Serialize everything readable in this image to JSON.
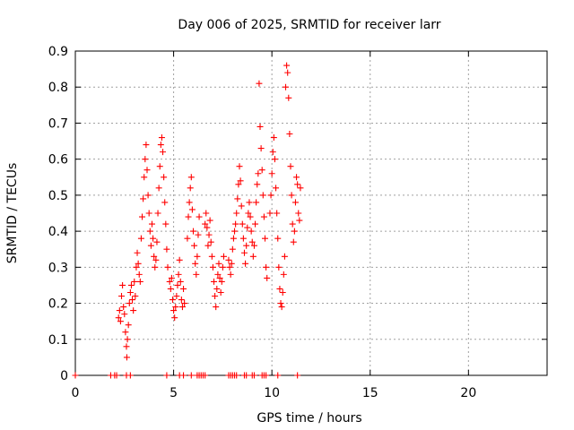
{
  "chart_data": {
    "type": "scatter",
    "title": "Day 006 of 2025, SRMTID for receiver larr",
    "xlabel": "GPS time / hours",
    "ylabel": "SRMTID / TECUs",
    "xlim": [
      0,
      24
    ],
    "ylim": [
      0,
      0.9
    ],
    "xticks": [
      0,
      5,
      10,
      15,
      20
    ],
    "xtick_labels": [
      "0",
      "5",
      "10",
      "15",
      "20"
    ],
    "yticks": [
      0,
      0.1,
      0.2,
      0.3,
      0.4,
      0.5,
      0.6,
      0.7,
      0.8,
      0.9
    ],
    "ytick_labels": [
      "0",
      "0.1",
      "0.2",
      "0.3",
      "0.4",
      "0.5",
      "0.6",
      "0.7",
      "0.8",
      "0.9"
    ],
    "grid": true,
    "marker": "+",
    "point_color": "#ff0000",
    "series": [
      {
        "name": "SRMTID",
        "points": [
          [
            0.0,
            0.0
          ],
          [
            1.8,
            0.0
          ],
          [
            2.0,
            0.0
          ],
          [
            2.1,
            0.0
          ],
          [
            2.6,
            0.0
          ],
          [
            2.8,
            0.0
          ],
          [
            4.65,
            0.0
          ],
          [
            5.3,
            0.0
          ],
          [
            5.5,
            0.0
          ],
          [
            5.9,
            0.0
          ],
          [
            6.2,
            0.0
          ],
          [
            6.3,
            0.0
          ],
          [
            6.4,
            0.0
          ],
          [
            6.5,
            0.0
          ],
          [
            6.6,
            0.0
          ],
          [
            7.8,
            0.0
          ],
          [
            7.9,
            0.0
          ],
          [
            8.0,
            0.0
          ],
          [
            8.1,
            0.0
          ],
          [
            8.2,
            0.0
          ],
          [
            8.6,
            0.0
          ],
          [
            8.7,
            0.0
          ],
          [
            9.0,
            0.0
          ],
          [
            9.1,
            0.0
          ],
          [
            9.5,
            0.0
          ],
          [
            9.6,
            0.0
          ],
          [
            9.7,
            0.0
          ],
          [
            10.3,
            0.0
          ],
          [
            11.3,
            0.0
          ],
          [
            2.2,
            0.16
          ],
          [
            2.25,
            0.18
          ],
          [
            2.3,
            0.15
          ],
          [
            2.35,
            0.22
          ],
          [
            2.4,
            0.25
          ],
          [
            2.45,
            0.19
          ],
          [
            2.5,
            0.17
          ],
          [
            2.55,
            0.12
          ],
          [
            2.6,
            0.08
          ],
          [
            2.62,
            0.05
          ],
          [
            2.65,
            0.1
          ],
          [
            2.7,
            0.14
          ],
          [
            2.75,
            0.2
          ],
          [
            2.8,
            0.23
          ],
          [
            2.85,
            0.25
          ],
          [
            2.9,
            0.21
          ],
          [
            2.95,
            0.18
          ],
          [
            3.0,
            0.26
          ],
          [
            3.05,
            0.22
          ],
          [
            3.1,
            0.3
          ],
          [
            3.15,
            0.34
          ],
          [
            3.2,
            0.31
          ],
          [
            3.25,
            0.28
          ],
          [
            3.3,
            0.26
          ],
          [
            3.35,
            0.38
          ],
          [
            3.4,
            0.44
          ],
          [
            3.45,
            0.49
          ],
          [
            3.5,
            0.55
          ],
          [
            3.55,
            0.6
          ],
          [
            3.6,
            0.64
          ],
          [
            3.65,
            0.57
          ],
          [
            3.7,
            0.5
          ],
          [
            3.75,
            0.45
          ],
          [
            3.8,
            0.4
          ],
          [
            3.85,
            0.36
          ],
          [
            3.9,
            0.42
          ],
          [
            3.95,
            0.38
          ],
          [
            4.0,
            0.33
          ],
          [
            4.05,
            0.3
          ],
          [
            4.1,
            0.32
          ],
          [
            4.15,
            0.37
          ],
          [
            4.2,
            0.45
          ],
          [
            4.25,
            0.52
          ],
          [
            4.3,
            0.58
          ],
          [
            4.35,
            0.64
          ],
          [
            4.4,
            0.66
          ],
          [
            4.45,
            0.62
          ],
          [
            4.5,
            0.55
          ],
          [
            4.55,
            0.48
          ],
          [
            4.6,
            0.42
          ],
          [
            4.65,
            0.35
          ],
          [
            4.7,
            0.3
          ],
          [
            4.8,
            0.26
          ],
          [
            4.85,
            0.24
          ],
          [
            4.9,
            0.27
          ],
          [
            4.95,
            0.21
          ],
          [
            5.0,
            0.18
          ],
          [
            5.05,
            0.16
          ],
          [
            5.1,
            0.19
          ],
          [
            5.15,
            0.22
          ],
          [
            5.2,
            0.25
          ],
          [
            5.25,
            0.28
          ],
          [
            5.3,
            0.32
          ],
          [
            5.35,
            0.26
          ],
          [
            5.4,
            0.21
          ],
          [
            5.45,
            0.19
          ],
          [
            5.5,
            0.24
          ],
          [
            5.55,
            0.2
          ],
          [
            5.7,
            0.38
          ],
          [
            5.75,
            0.44
          ],
          [
            5.8,
            0.48
          ],
          [
            5.85,
            0.52
          ],
          [
            5.9,
            0.55
          ],
          [
            5.95,
            0.46
          ],
          [
            6.0,
            0.4
          ],
          [
            6.05,
            0.36
          ],
          [
            6.1,
            0.31
          ],
          [
            6.15,
            0.28
          ],
          [
            6.2,
            0.33
          ],
          [
            6.25,
            0.39
          ],
          [
            6.3,
            0.44
          ],
          [
            6.6,
            0.42
          ],
          [
            6.65,
            0.45
          ],
          [
            6.7,
            0.41
          ],
          [
            6.75,
            0.36
          ],
          [
            6.8,
            0.39
          ],
          [
            6.85,
            0.43
          ],
          [
            6.9,
            0.37
          ],
          [
            6.95,
            0.33
          ],
          [
            7.0,
            0.3
          ],
          [
            7.05,
            0.26
          ],
          [
            7.1,
            0.22
          ],
          [
            7.15,
            0.19
          ],
          [
            7.2,
            0.24
          ],
          [
            7.25,
            0.28
          ],
          [
            7.3,
            0.31
          ],
          [
            7.35,
            0.27
          ],
          [
            7.4,
            0.23
          ],
          [
            7.45,
            0.26
          ],
          [
            7.5,
            0.3
          ],
          [
            7.55,
            0.33
          ],
          [
            7.8,
            0.32
          ],
          [
            7.85,
            0.3
          ],
          [
            7.9,
            0.28
          ],
          [
            7.95,
            0.31
          ],
          [
            8.0,
            0.35
          ],
          [
            8.05,
            0.38
          ],
          [
            8.1,
            0.4
          ],
          [
            8.15,
            0.42
          ],
          [
            8.2,
            0.45
          ],
          [
            8.25,
            0.49
          ],
          [
            8.3,
            0.53
          ],
          [
            8.35,
            0.58
          ],
          [
            8.4,
            0.54
          ],
          [
            8.45,
            0.47
          ],
          [
            8.5,
            0.42
          ],
          [
            8.55,
            0.38
          ],
          [
            8.6,
            0.34
          ],
          [
            8.65,
            0.31
          ],
          [
            8.7,
            0.36
          ],
          [
            8.75,
            0.41
          ],
          [
            8.8,
            0.45
          ],
          [
            8.85,
            0.48
          ],
          [
            8.9,
            0.44
          ],
          [
            8.95,
            0.4
          ],
          [
            9.0,
            0.37
          ],
          [
            9.05,
            0.33
          ],
          [
            9.1,
            0.36
          ],
          [
            9.15,
            0.42
          ],
          [
            9.2,
            0.48
          ],
          [
            9.25,
            0.53
          ],
          [
            9.3,
            0.56
          ],
          [
            9.35,
            0.81
          ],
          [
            9.4,
            0.69
          ],
          [
            9.45,
            0.63
          ],
          [
            9.5,
            0.57
          ],
          [
            9.55,
            0.5
          ],
          [
            9.6,
            0.44
          ],
          [
            9.65,
            0.38
          ],
          [
            9.7,
            0.3
          ],
          [
            9.75,
            0.27
          ],
          [
            9.9,
            0.45
          ],
          [
            9.95,
            0.5
          ],
          [
            10.0,
            0.56
          ],
          [
            10.05,
            0.62
          ],
          [
            10.1,
            0.66
          ],
          [
            10.15,
            0.6
          ],
          [
            10.2,
            0.52
          ],
          [
            10.25,
            0.45
          ],
          [
            10.3,
            0.38
          ],
          [
            10.35,
            0.3
          ],
          [
            10.4,
            0.24
          ],
          [
            10.45,
            0.2
          ],
          [
            10.5,
            0.19
          ],
          [
            10.55,
            0.23
          ],
          [
            10.6,
            0.28
          ],
          [
            10.65,
            0.33
          ],
          [
            10.7,
            0.8
          ],
          [
            10.75,
            0.86
          ],
          [
            10.8,
            0.84
          ],
          [
            10.85,
            0.77
          ],
          [
            10.9,
            0.67
          ],
          [
            10.95,
            0.58
          ],
          [
            11.0,
            0.5
          ],
          [
            11.05,
            0.42
          ],
          [
            11.1,
            0.37
          ],
          [
            11.15,
            0.4
          ],
          [
            11.2,
            0.48
          ],
          [
            11.25,
            0.55
          ],
          [
            11.3,
            0.53
          ],
          [
            11.35,
            0.45
          ],
          [
            11.4,
            0.43
          ],
          [
            11.45,
            0.52
          ]
        ]
      }
    ]
  }
}
